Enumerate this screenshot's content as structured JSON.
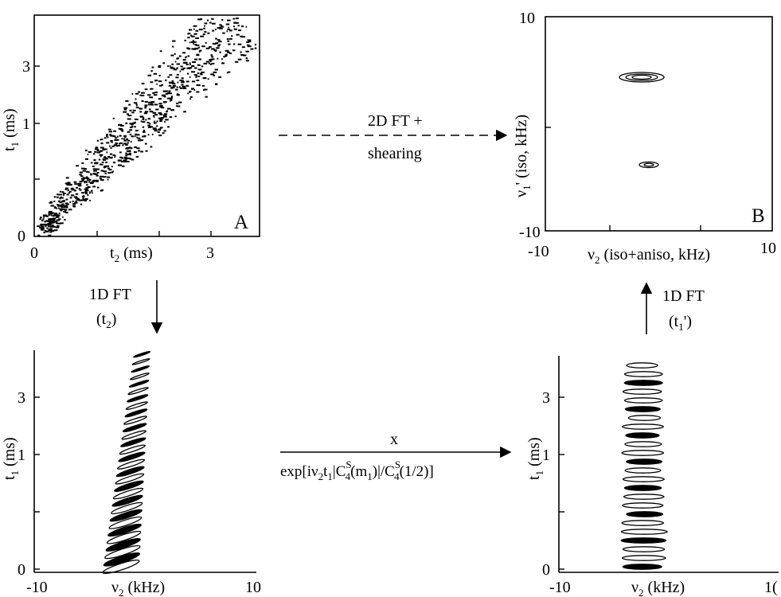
{
  "panels": {
    "a": {
      "letter": "A",
      "xlabel_main": "t",
      "xlabel_sub": "2",
      "xlabel_tail": " (ms)",
      "ylabel_main": "t",
      "ylabel_sub": "1",
      "ylabel_tail": " (ms)",
      "xticks": [
        "0",
        "3"
      ],
      "yticks": [
        "3",
        "1",
        "0"
      ]
    },
    "b": {
      "letter": "B",
      "xlabel_main": "ν",
      "xlabel_sub": "2",
      "xlabel_tail": " (iso+aniso, kHz)",
      "ylabel_main": "ν",
      "ylabel_sub": "1",
      "ylabel_tail": "' (iso, kHz)",
      "xticks": [
        "-10",
        "10"
      ],
      "yticks": [
        "10",
        "-10"
      ]
    },
    "c": {
      "xlabel_main": "ν",
      "xlabel_sub": "2",
      "xlabel_tail": " (kHz)",
      "ylabel_main": "t",
      "ylabel_sub": "1",
      "ylabel_tail": " (ms)",
      "xticks": [
        "-10",
        "10"
      ],
      "yticks": [
        "3",
        "1",
        "0"
      ]
    },
    "d": {
      "xlabel_main": "ν",
      "xlabel_sub": "2",
      "xlabel_tail": " (kHz)",
      "ylabel_main": "t",
      "ylabel_sub": "1",
      "ylabel_tail": " (ms)",
      "xticks": [
        "-10",
        "1("
      ],
      "yticks": [
        "3",
        "1",
        "0"
      ]
    }
  },
  "arrows": {
    "top_line1": "2D FT +",
    "top_line2": "shearing",
    "left_line1": "1D FT",
    "left_line2_open": "(t",
    "left_line2_sub": "2",
    "left_line2_close": ")",
    "right_line1": "1D FT",
    "right_line2_open": "(t",
    "right_line2_sub": "1",
    "right_line2_close": "')",
    "bottom_line1": "x",
    "bottom_exp": "exp[iν",
    "bottom_sub2": "2",
    "bottom_t": "t",
    "bottom_sub1": "1",
    "bottom_bar1": "|C",
    "bottom_supS1": "S",
    "bottom_sub4a": "4",
    "bottom_m": "(m",
    "bottom_sub1b": "1",
    "bottom_close1": ")|/C",
    "bottom_supS2": "S",
    "bottom_sub4b": "4",
    "bottom_close2": "(1/2)]"
  },
  "colors": {
    "ink": "#000000",
    "background": "#ffffff"
  }
}
